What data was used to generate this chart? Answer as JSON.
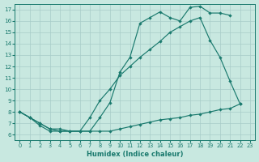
{
  "bg_color": "#c8e8e0",
  "line_color": "#1a7a6e",
  "grid_color": "#a8ccc8",
  "xlabel": "Humidex (Indice chaleur)",
  "xlim": [
    -0.5,
    23.5
  ],
  "ylim": [
    5.5,
    17.5
  ],
  "yticks": [
    6,
    7,
    8,
    9,
    10,
    11,
    12,
    13,
    14,
    15,
    16,
    17
  ],
  "xticks": [
    0,
    1,
    2,
    3,
    4,
    5,
    6,
    7,
    8,
    9,
    10,
    11,
    12,
    13,
    14,
    15,
    16,
    17,
    18,
    19,
    20,
    21,
    22,
    23
  ],
  "s1_x": [
    0,
    1,
    2,
    3,
    4,
    5,
    6,
    7,
    8,
    9,
    10,
    11,
    12,
    13,
    14,
    15,
    16,
    17,
    18,
    19,
    20,
    21
  ],
  "s1_y": [
    8.0,
    7.5,
    7.0,
    6.5,
    6.5,
    6.3,
    6.3,
    6.3,
    7.5,
    8.8,
    11.5,
    12.8,
    15.8,
    16.3,
    16.8,
    16.3,
    16.0,
    17.2,
    17.3,
    16.7,
    16.7,
    16.5
  ],
  "s2_x": [
    0,
    1,
    2,
    3,
    4,
    5,
    6,
    7,
    8,
    9,
    10,
    11,
    12,
    13,
    14,
    15,
    16,
    17,
    18,
    19,
    20,
    21,
    22
  ],
  "s2_y": [
    8.0,
    7.5,
    7.0,
    6.5,
    6.3,
    6.3,
    6.3,
    7.5,
    9.0,
    10.0,
    11.2,
    12.0,
    12.8,
    13.5,
    14.2,
    15.0,
    15.5,
    16.0,
    16.3,
    14.3,
    12.8,
    10.7,
    8.7
  ],
  "s3_x": [
    0,
    1,
    2,
    3,
    4,
    5,
    6,
    7,
    8,
    9,
    10,
    11,
    12,
    13,
    14,
    15,
    16,
    17,
    18,
    19,
    20,
    21,
    22
  ],
  "s3_y": [
    8.0,
    7.5,
    6.8,
    6.3,
    6.3,
    6.3,
    6.3,
    6.3,
    6.3,
    6.3,
    6.5,
    6.7,
    6.9,
    7.1,
    7.3,
    7.4,
    7.5,
    7.7,
    7.8,
    8.0,
    8.2,
    8.3,
    8.7
  ]
}
